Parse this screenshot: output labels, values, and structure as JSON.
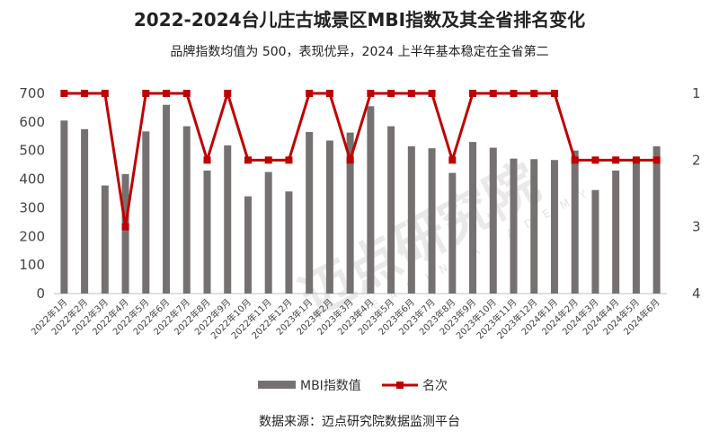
{
  "title": "2022-2024台儿庄古城景区MBI指数及其全省排名变化",
  "subtitle": "品牌指数均值为 500，表现优异，2024 上半年基本稳定在全省第二",
  "source": "数据来源：迈点研究院数据监测平台",
  "watermark": {
    "main": "迈点研究院",
    "sub": "MEADIN ACADEMY"
  },
  "colors": {
    "bar": "#767171",
    "line": "#C00000"
  },
  "chart_data": {
    "type": "bar",
    "categories": [
      "2022年1月",
      "2022年2月",
      "2022年3月",
      "2022年4月",
      "2022年5月",
      "2022年6月",
      "2022年7月",
      "2022年8月",
      "2022年9月",
      "2022年10月",
      "2022年11月",
      "2022年12月",
      "2023年1月",
      "2023年2月",
      "2023年3月",
      "2023年4月",
      "2023年5月",
      "2023年6月",
      "2023年7月",
      "2023年8月",
      "2023年9月",
      "2023年10月",
      "2023年11月",
      "2023年12月",
      "2024年1月",
      "2024年2月",
      "2024年3月",
      "2024年4月",
      "2024年5月",
      "2024年6月"
    ],
    "series": [
      {
        "name": "MBI指数值",
        "type": "bar",
        "axis": "left",
        "values": [
          605,
          575,
          378,
          418,
          567,
          660,
          585,
          430,
          518,
          340,
          425,
          357,
          565,
          535,
          563,
          655,
          585,
          515,
          508,
          422,
          530,
          510,
          472,
          470,
          467,
          500,
          362,
          430,
          465,
          515
        ]
      },
      {
        "name": "名次",
        "type": "line",
        "axis": "right",
        "values": [
          1,
          1,
          1,
          3,
          1,
          1,
          1,
          2,
          1,
          2,
          2,
          2,
          1,
          1,
          2,
          1,
          1,
          1,
          1,
          2,
          1,
          1,
          1,
          1,
          1,
          2,
          2,
          2,
          2,
          2
        ]
      }
    ],
    "y_left": {
      "ticks": [
        0,
        100,
        200,
        300,
        400,
        500,
        600,
        700
      ],
      "range": [
        0,
        700
      ]
    },
    "y_right": {
      "ticks": [
        1,
        2,
        3,
        4
      ],
      "range": [
        1,
        4
      ],
      "reversed": true
    },
    "grid": false,
    "legend_position": "bottom"
  }
}
